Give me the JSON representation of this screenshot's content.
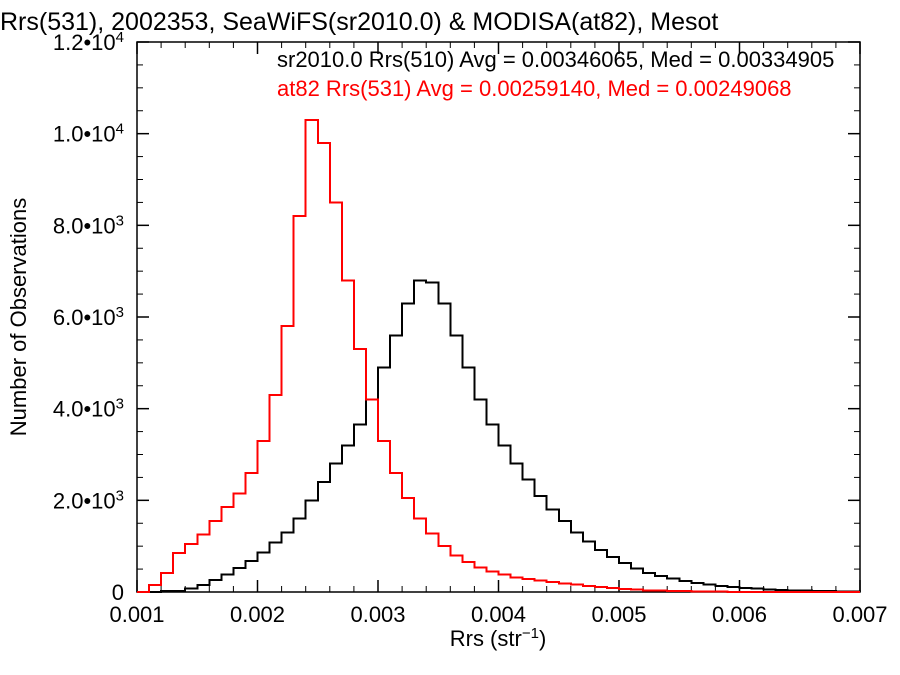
{
  "chart_data": {
    "type": "line",
    "title": "Rrs(531), 2002353, SeaWiFS(sr2010.0) & MODISA(at82), Mesot",
    "xlabel": "Rrs (str⁻¹)",
    "ylabel": "Number of Observations",
    "xlim": [
      0.001,
      0.007
    ],
    "ylim": [
      0,
      12000
    ],
    "x_ticks": [
      "0.001",
      "0.002",
      "0.003",
      "0.004",
      "0.005",
      "0.006",
      "0.007"
    ],
    "y_ticks": [
      {
        "value": 0,
        "mantissa": "0",
        "exponent": ""
      },
      {
        "value": 2000,
        "mantissa": "2.0•10",
        "exponent": "3"
      },
      {
        "value": 4000,
        "mantissa": "4.0•10",
        "exponent": "3"
      },
      {
        "value": 6000,
        "mantissa": "6.0•10",
        "exponent": "3"
      },
      {
        "value": 8000,
        "mantissa": "8.0•10",
        "exponent": "3"
      },
      {
        "value": 10000,
        "mantissa": "1.0•10",
        "exponent": "4"
      },
      {
        "value": 12000,
        "mantissa": "1.2•10",
        "exponent": "4"
      }
    ],
    "grid": false,
    "legend_position": "top-right",
    "series": [
      {
        "name": "sr2010.0 Rrs(510) Avg = 0.00346065, Med = 0.00334905",
        "color": "#000000",
        "step": true,
        "points": [
          [
            0.001,
            0
          ],
          [
            0.0012,
            20
          ],
          [
            0.0014,
            80
          ],
          [
            0.0015,
            150
          ],
          [
            0.0016,
            260
          ],
          [
            0.0017,
            380
          ],
          [
            0.0018,
            520
          ],
          [
            0.0019,
            680
          ],
          [
            0.002,
            860
          ],
          [
            0.0021,
            1080
          ],
          [
            0.0022,
            1300
          ],
          [
            0.0023,
            1600
          ],
          [
            0.0024,
            2000
          ],
          [
            0.0025,
            2400
          ],
          [
            0.0026,
            2800
          ],
          [
            0.0027,
            3200
          ],
          [
            0.0028,
            3650
          ],
          [
            0.0029,
            4200
          ],
          [
            0.003,
            4900
          ],
          [
            0.0031,
            5600
          ],
          [
            0.0032,
            6300
          ],
          [
            0.0033,
            6800
          ],
          [
            0.0034,
            6750
          ],
          [
            0.0035,
            6300
          ],
          [
            0.0036,
            5600
          ],
          [
            0.0037,
            4900
          ],
          [
            0.0038,
            4200
          ],
          [
            0.0039,
            3650
          ],
          [
            0.004,
            3200
          ],
          [
            0.0041,
            2800
          ],
          [
            0.0042,
            2450
          ],
          [
            0.0043,
            2100
          ],
          [
            0.0044,
            1800
          ],
          [
            0.0045,
            1550
          ],
          [
            0.0046,
            1300
          ],
          [
            0.0047,
            1100
          ],
          [
            0.0048,
            920
          ],
          [
            0.0049,
            760
          ],
          [
            0.005,
            630
          ],
          [
            0.0051,
            510
          ],
          [
            0.0052,
            420
          ],
          [
            0.0053,
            350
          ],
          [
            0.0054,
            290
          ],
          [
            0.0055,
            240
          ],
          [
            0.0056,
            200
          ],
          [
            0.0057,
            165
          ],
          [
            0.0058,
            135
          ],
          [
            0.0059,
            110
          ],
          [
            0.006,
            90
          ],
          [
            0.0061,
            75
          ],
          [
            0.0062,
            60
          ],
          [
            0.0063,
            48
          ],
          [
            0.0064,
            38
          ],
          [
            0.0065,
            30
          ],
          [
            0.0066,
            24
          ],
          [
            0.0067,
            18
          ],
          [
            0.0068,
            14
          ],
          [
            0.0069,
            10
          ],
          [
            0.007,
            8
          ]
        ]
      },
      {
        "name": "at82 Rrs(531) Avg = 0.00259140, Med = 0.00249068",
        "color": "#ff0000",
        "step": true,
        "points": [
          [
            0.001,
            0
          ],
          [
            0.0011,
            150
          ],
          [
            0.0012,
            420
          ],
          [
            0.0013,
            850
          ],
          [
            0.0014,
            1050
          ],
          [
            0.0015,
            1250
          ],
          [
            0.0016,
            1550
          ],
          [
            0.0017,
            1850
          ],
          [
            0.0018,
            2150
          ],
          [
            0.0019,
            2600
          ],
          [
            0.002,
            3300
          ],
          [
            0.0021,
            4300
          ],
          [
            0.0022,
            5800
          ],
          [
            0.0023,
            8200
          ],
          [
            0.0024,
            10300
          ],
          [
            0.0025,
            9800
          ],
          [
            0.0026,
            8500
          ],
          [
            0.0027,
            6800
          ],
          [
            0.0028,
            5300
          ],
          [
            0.0029,
            4200
          ],
          [
            0.003,
            3300
          ],
          [
            0.0031,
            2600
          ],
          [
            0.0032,
            2050
          ],
          [
            0.0033,
            1600
          ],
          [
            0.0034,
            1280
          ],
          [
            0.0035,
            1000
          ],
          [
            0.0036,
            800
          ],
          [
            0.0037,
            650
          ],
          [
            0.0038,
            540
          ],
          [
            0.0039,
            450
          ],
          [
            0.004,
            380
          ],
          [
            0.0041,
            320
          ],
          [
            0.0042,
            280
          ],
          [
            0.0043,
            250
          ],
          [
            0.0044,
            220
          ],
          [
            0.0045,
            190
          ],
          [
            0.0046,
            160
          ],
          [
            0.0047,
            130
          ],
          [
            0.0048,
            105
          ],
          [
            0.0049,
            85
          ],
          [
            0.005,
            65
          ],
          [
            0.0051,
            50
          ],
          [
            0.0052,
            38
          ],
          [
            0.0053,
            30
          ],
          [
            0.0054,
            24
          ],
          [
            0.0055,
            18
          ],
          [
            0.0056,
            14
          ],
          [
            0.0057,
            10
          ],
          [
            0.0058,
            7
          ],
          [
            0.0059,
            5
          ],
          [
            0.006,
            4
          ],
          [
            0.0061,
            3
          ],
          [
            0.0062,
            2
          ],
          [
            0.0063,
            2
          ],
          [
            0.0064,
            1
          ],
          [
            0.0065,
            1
          ],
          [
            0.0066,
            1
          ],
          [
            0.0067,
            1
          ],
          [
            0.0068,
            0
          ],
          [
            0.0069,
            0
          ],
          [
            0.007,
            0
          ]
        ]
      }
    ]
  }
}
